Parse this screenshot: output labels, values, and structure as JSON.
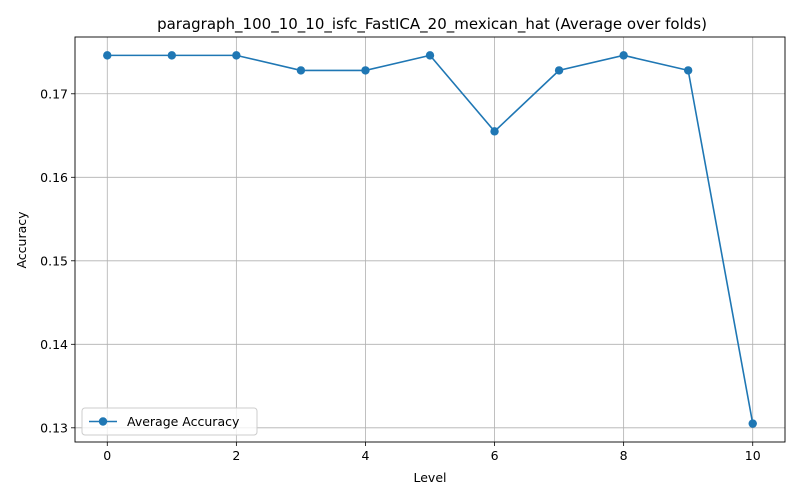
{
  "chart_data": {
    "type": "line",
    "title": "paragraph_100_10_10_isfc_FastICA_20_mexican_hat (Average over folds)",
    "xlabel": "Level",
    "ylabel": "Accuracy",
    "x": [
      0,
      1,
      2,
      3,
      4,
      5,
      6,
      7,
      8,
      9,
      10
    ],
    "series": [
      {
        "name": "Average Accuracy",
        "color": "#1f77b4",
        "marker": "circle",
        "values": [
          0.1746,
          0.1746,
          0.1746,
          0.1728,
          0.1728,
          0.1746,
          0.1655,
          0.1728,
          0.1746,
          0.1728,
          0.1305
        ]
      }
    ],
    "xlim": [
      -0.5,
      10.5
    ],
    "ylim": [
      0.1283,
      0.1768
    ],
    "xticks": [
      0,
      2,
      4,
      6,
      8,
      10
    ],
    "xtick_labels": [
      "0",
      "2",
      "4",
      "6",
      "8",
      "10"
    ],
    "yticks": [
      0.13,
      0.14,
      0.15,
      0.16,
      0.17
    ],
    "ytick_labels": [
      "0.13",
      "0.14",
      "0.15",
      "0.16",
      "0.17"
    ],
    "grid": true,
    "legend_position": "lower-left"
  }
}
